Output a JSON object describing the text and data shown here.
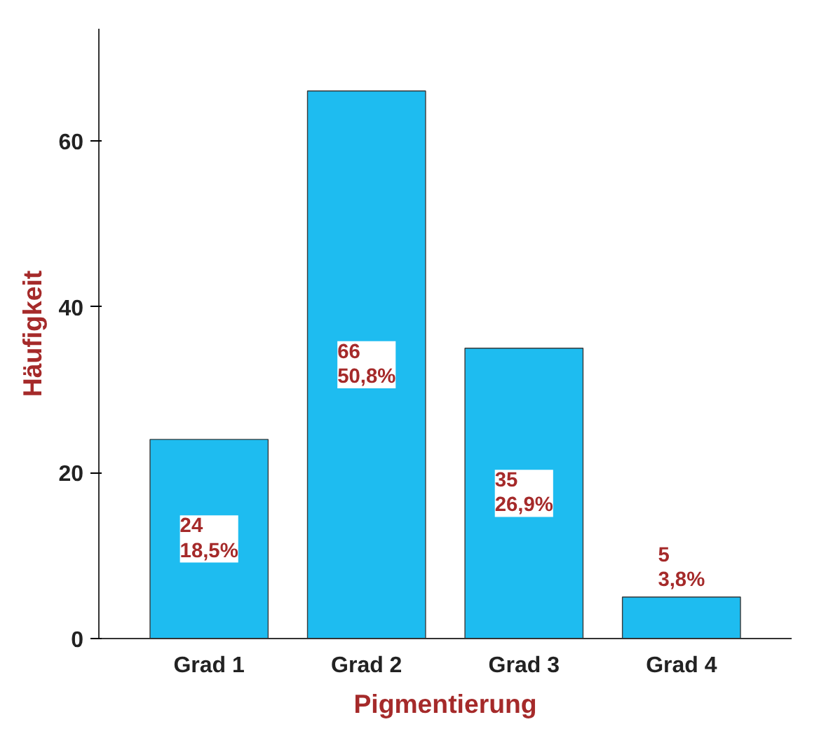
{
  "chart_data": {
    "type": "bar",
    "xlabel": "Pigmentierung",
    "ylabel": "Häufigkeit",
    "categories": [
      "Grad 1",
      "Grad 2",
      "Grad 3",
      "Grad 4"
    ],
    "values": [
      24,
      66,
      35,
      5
    ],
    "value_labels": [
      "24\n18,5%",
      "66\n50,8%",
      "35\n26,9%",
      "5\n3,8%"
    ],
    "color": "#1ebcf0",
    "ylim": [
      0,
      73.5
    ],
    "yticks": [
      0,
      20,
      40,
      60
    ],
    "grid": false
  }
}
